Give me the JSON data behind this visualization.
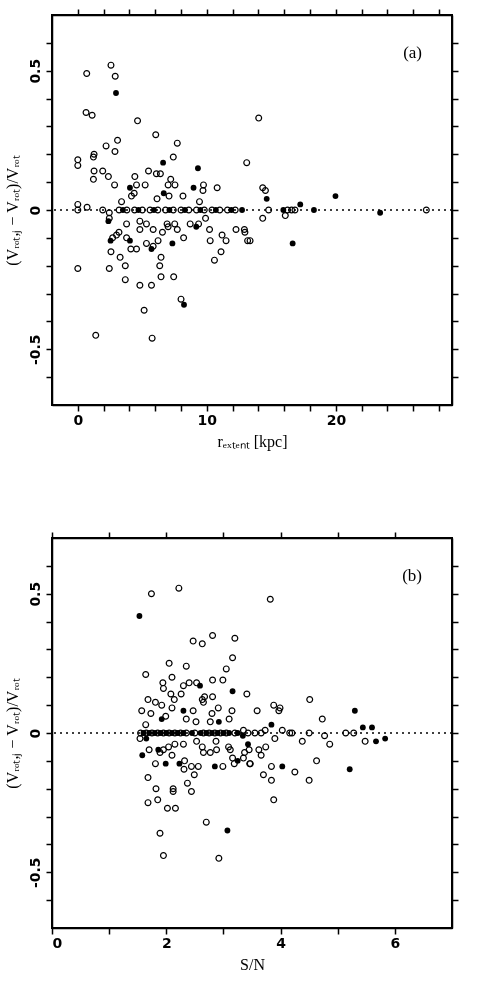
{
  "chart_data": [
    {
      "type": "scatter",
      "xlabel": "rₑₓₜₑₙₜ [kpc]",
      "ylabel": "(Vᵣₒₜ,ⱼ − Vᵣₒₜ)/Vᵣₒₜ",
      "marker": "circle",
      "annotations": [
        "(a)"
      ],
      "xlim": [
        -2,
        29
      ],
      "ylim": [
        -0.7,
        0.7
      ],
      "xticks": [
        0,
        {
          "value": 2,
          "label": null
        },
        {
          "value": 4,
          "label": null
        },
        {
          "value": 6,
          "label": null
        },
        {
          "value": 8,
          "label": null
        },
        10,
        {
          "value": 12,
          "label": null
        },
        {
          "value": 14,
          "label": null
        },
        {
          "value": 16,
          "label": null
        },
        {
          "value": 18,
          "label": null
        },
        20,
        {
          "value": 22,
          "label": null
        },
        {
          "value": 24,
          "label": null
        },
        {
          "value": 26,
          "label": null
        },
        {
          "value": 28,
          "label": null
        }
      ],
      "yticks": [
        {
          "value": -0.6,
          "label": null
        },
        -0.5,
        {
          "value": -0.4,
          "label": null
        },
        {
          "value": -0.3,
          "label": null
        },
        {
          "value": -0.2,
          "label": null
        },
        {
          "value": -0.1,
          "label": null
        },
        0,
        {
          "value": 0.1,
          "label": null
        },
        {
          "value": 0.2,
          "label": null
        },
        {
          "value": 0.3,
          "label": null
        },
        {
          "value": 0.4,
          "label": null
        },
        0.5,
        {
          "value": 0.6,
          "label": null
        }
      ],
      "ref_lines": [
        {
          "axis": "y",
          "value": 0,
          "line_style": "dotted"
        }
      ],
      "series": [
        {
          "color": "#000000",
          "x": [
            0.69,
            2.57,
            2.9,
            0.64,
            1.11,
            4.63,
            6.04,
            3.08,
            7.71,
            2.19,
            2.88,
            1.26,
            1.21,
            0,
            0,
            7.4,
            1.26,
            1.93,
            2.37,
            1.21,
            2.85,
            4.42,
            5.48,
            6.09,
            6.4,
            7.2,
            7.0,
            7.53,
            9.74,
            9.7,
            10.8,
            4.55,
            5.22,
            4.37,
            4.16,
            7.07,
            8.15,
            6.14,
            3.39,
            9.43,
            0,
            0.72,
            0,
            1.93,
            3.2,
            3.8,
            4.4,
            5.0,
            5.6,
            6.2,
            6.8,
            7.4,
            8.0,
            8.6,
            9.2,
            9.8,
            10.4,
            11.0,
            11.6,
            12.2,
            2.44,
            2.44,
            3.78,
            4.81,
            5.32,
            6.92,
            7.51,
            8.71,
            9.36,
            9.9,
            4.81,
            5.84,
            6.56,
            7.0,
            7.71,
            10.21,
            11.18,
            12.26,
            13.16,
            3.19,
            2.7,
            3.0,
            3.78,
            4.11,
            4.55,
            5.32,
            5.84,
            6.22,
            8.2,
            10.26,
            11.49,
            2.57,
            3.28,
            6.45,
            11.1,
            10.59,
            3.68,
            6.35,
            0,
            2.44,
            3.68,
            6.45,
            7.43,
            4.81,
            5.71,
            8.0,
            5.14,
            1.39,
            5.76,
            14.02,
            13.09,
            14.33,
            14.54,
            14.79,
            16.08,
            16.26,
            16.57,
            16.83,
            27.01,
            14.33,
            12.91,
            12.95,
            13.35
          ],
          "values": [
            0.49,
            0.52,
            0.48,
            0.35,
            0.34,
            0.32,
            0.27,
            0.25,
            0.24,
            0.23,
            0.21,
            0.2,
            0.19,
            0.18,
            0.16,
            0.19,
            0.14,
            0.14,
            0.12,
            0.11,
            0.09,
            0.12,
            0.14,
            0.13,
            0.13,
            0.11,
            0.09,
            0.09,
            0.09,
            0.07,
            0.08,
            0.09,
            0.09,
            0.06,
            0.05,
            0.05,
            0.05,
            0.04,
            0.03,
            0.03,
            0.02,
            0.01,
            0,
            0,
            0,
            0,
            0,
            0,
            0,
            0,
            0,
            0,
            0,
            0,
            0,
            0,
            0,
            0,
            0,
            0,
            -0.01,
            -0.03,
            -0.05,
            -0.04,
            -0.05,
            -0.05,
            -0.05,
            -0.05,
            -0.05,
            -0.03,
            -0.07,
            -0.07,
            -0.08,
            -0.06,
            -0.07,
            -0.07,
            -0.09,
            -0.07,
            -0.11,
            -0.08,
            -0.1,
            -0.09,
            -0.1,
            -0.14,
            -0.14,
            -0.12,
            -0.13,
            -0.11,
            -0.1,
            -0.11,
            -0.11,
            -0.15,
            -0.17,
            -0.17,
            -0.15,
            -0.18,
            -0.2,
            -0.2,
            -0.21,
            -0.21,
            -0.25,
            -0.24,
            -0.24,
            -0.27,
            -0.27,
            -0.32,
            -0.36,
            -0.45,
            -0.46,
            0.33,
            0.17,
            0.08,
            0.07,
            0,
            -0.02,
            0,
            0,
            0,
            0,
            -0.03,
            -0.07,
            -0.08,
            -0.11
          ]
        },
        {
          "color": "#000000",
          "x": [
            2.96,
            6.61,
            9.31,
            8.97,
            4.04,
            6.66,
            3.5,
            4.7,
            5.9,
            7.1,
            8.3,
            9.5,
            10.7,
            11.9,
            12.73,
            2.37,
            9.18,
            2.54,
            4.04,
            5.71,
            7.33,
            8.23,
            14.64,
            15.93,
            17.24,
            18.3,
            19.97,
            23.43,
            16.65
          ],
          "values": [
            0.42,
            0.17,
            0.15,
            0.08,
            0.08,
            0.06,
            0,
            0,
            0,
            0,
            0,
            0,
            0,
            0,
            0,
            -0.04,
            -0.06,
            -0.11,
            -0.11,
            -0.14,
            -0.12,
            -0.34,
            0.04,
            0,
            0.02,
            0,
            0.05,
            -0.01,
            -0.12
          ]
        }
      ]
    },
    {
      "type": "scatter",
      "xlabel": "S/N",
      "ylabel": "(Vᵣₒₜ,ⱼ − Vᵣₒₜ)/Vᵣₒₜ",
      "marker": "circle",
      "annotations": [
        "(b)"
      ],
      "xlim": [
        0,
        7
      ],
      "ylim": [
        -0.7,
        0.7
      ],
      "xticks": [
        0,
        {
          "value": 1,
          "label": null
        },
        2,
        {
          "value": 3,
          "label": null
        },
        4,
        {
          "value": 5,
          "label": null
        },
        6
      ],
      "yticks": [
        {
          "value": -0.6,
          "label": null
        },
        -0.5,
        {
          "value": -0.4,
          "label": null
        },
        {
          "value": -0.3,
          "label": null
        },
        {
          "value": -0.2,
          "label": null
        },
        {
          "value": -0.1,
          "label": null
        },
        0,
        {
          "value": 0.1,
          "label": null
        },
        {
          "value": 0.2,
          "label": null
        },
        {
          "value": 0.3,
          "label": null
        },
        {
          "value": 0.4,
          "label": null
        },
        0.5,
        {
          "value": 0.6,
          "label": null
        }
      ],
      "ref_lines": [
        {
          "axis": "y",
          "value": 0,
          "line_style": "dotted"
        }
      ],
      "series": [
        {
          "color": "#000000",
          "x": [
            1.74,
            2.22,
            2.47,
            2.63,
            2.81,
            3.2,
            3.16,
            2.05,
            2.35,
            1.64,
            3.05,
            2.1,
            1.94,
            1.95,
            2.3,
            2.4,
            2.53,
            2.81,
            2.99,
            2.08,
            2.14,
            2.26,
            1.68,
            1.81,
            1.92,
            3.41,
            2.63,
            2.67,
            2.81,
            2.65,
            1.57,
            1.73,
            1.99,
            2.1,
            2.47,
            2.35,
            2.52,
            2.8,
            2.91,
            3.15,
            3.1,
            2.77,
            1.64,
            1.55,
            1.65,
            1.75,
            1.85,
            1.95,
            2.05,
            2.15,
            2.25,
            2.35,
            2.5,
            2.65,
            2.75,
            2.85,
            2.95,
            3.05,
            3.2,
            1.54,
            1.7,
            1.89,
            1.95,
            2.04,
            2.1,
            2.15,
            2.3,
            1.81,
            2.32,
            2.31,
            2.44,
            2.56,
            2.49,
            2.37,
            2.44,
            2.53,
            2.63,
            2.65,
            2.77,
            2.87,
            2.88,
            2.99,
            3.09,
            3.12,
            3.19,
            3.16,
            3.35,
            3.46,
            1.68,
            1.82,
            1.68,
            1.85,
            2.12,
            2.12,
            2.02,
            2.16,
            2.7,
            1.89,
            1.95,
            2.92,
            3.82,
            4.51,
            3.88,
            3.99,
            3.97,
            3.59,
            4.73,
            3.35,
            3.43,
            3.55,
            3.66,
            3.73,
            4.03,
            4.16,
            4.2,
            4.5,
            5.14,
            5.28,
            4.77,
            3.9,
            4.38,
            4.86,
            5.48,
            3.45,
            3.37,
            3.62,
            3.66,
            3.74,
            3.47,
            3.84,
            3.7,
            3.84,
            4.25,
            4.5,
            4.63,
            3.88
          ],
          "values": [
            0.5,
            0.52,
            0.33,
            0.32,
            0.35,
            0.34,
            0.27,
            0.25,
            0.24,
            0.21,
            0.23,
            0.2,
            0.18,
            0.16,
            0.17,
            0.18,
            0.18,
            0.19,
            0.19,
            0.14,
            0.12,
            0.14,
            0.12,
            0.11,
            0.1,
            0.14,
            0.12,
            0.13,
            0.13,
            0.11,
            0.08,
            0.07,
            0.06,
            0.09,
            0.08,
            0.05,
            0.04,
            0.07,
            0.09,
            0.08,
            0.05,
            0.04,
            0.03,
            0,
            0,
            0,
            0,
            0,
            0,
            0,
            0,
            0,
            0,
            0,
            0,
            0,
            0,
            0,
            0,
            -0.02,
            -0.06,
            -0.07,
            -0.06,
            -0.05,
            -0.08,
            -0.04,
            -0.04,
            -0.11,
            -0.1,
            -0.13,
            -0.12,
            -0.12,
            -0.15,
            -0.18,
            -0.21,
            -0.03,
            -0.05,
            -0.07,
            -0.07,
            -0.03,
            -0.06,
            -0.12,
            -0.05,
            -0.06,
            -0.11,
            -0.09,
            -0.09,
            -0.11,
            -0.16,
            -0.2,
            -0.25,
            -0.24,
            -0.2,
            -0.21,
            -0.27,
            -0.27,
            -0.32,
            -0.36,
            -0.44,
            -0.45,
            0.48,
            0.12,
            0.1,
            0.09,
            0.08,
            0.08,
            0.05,
            0.01,
            0,
            0,
            0,
            0.01,
            0.01,
            0,
            0,
            0,
            0,
            0,
            -0.01,
            -0.02,
            -0.03,
            -0.04,
            -0.03,
            -0.06,
            -0.07,
            -0.06,
            -0.08,
            -0.05,
            -0.11,
            -0.12,
            -0.15,
            -0.17,
            -0.14,
            -0.17,
            -0.1,
            -0.24
          ]
        },
        {
          "color": "#000000",
          "x": [
            1.53,
            2.59,
            3.16,
            1.92,
            2.3,
            2.92,
            1.6,
            1.7,
            1.8,
            1.9,
            2.0,
            2.1,
            2.2,
            2.3,
            2.45,
            2.6,
            2.7,
            2.8,
            2.9,
            3.0,
            3.1,
            3.25,
            1.65,
            1.58,
            1.86,
            1.99,
            2.23,
            2.85,
            3.25,
            3.07,
            3.84,
            5.44,
            5.6,
            5.3,
            3.34,
            3.43,
            4.03,
            5.67,
            5.83,
            5.21
          ],
          "values": [
            0.42,
            0.17,
            0.15,
            0.05,
            0.08,
            0.04,
            0,
            0,
            0,
            0,
            0,
            0,
            0,
            0,
            0,
            0,
            0,
            0,
            0,
            0,
            0,
            0,
            -0.02,
            -0.08,
            -0.06,
            -0.11,
            -0.11,
            -0.12,
            -0.1,
            -0.35,
            0.03,
            0.02,
            0.02,
            0.08,
            -0.01,
            -0.04,
            -0.12,
            -0.03,
            -0.02,
            -0.13
          ]
        }
      ]
    }
  ]
}
